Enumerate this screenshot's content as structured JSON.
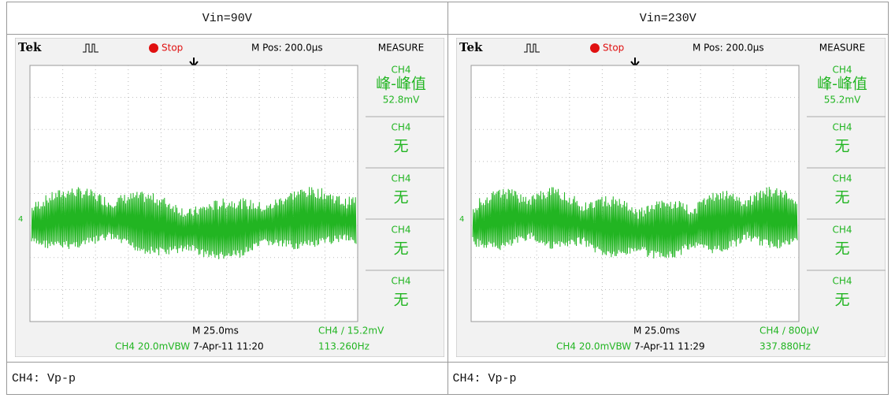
{
  "table": {
    "header": [
      "Vin=90V",
      "Vin=230V"
    ],
    "captions": [
      "CH4: Vp-p",
      "CH4: Vp-p"
    ]
  },
  "scopes": [
    {
      "brand": "Tek",
      "status": "Stop",
      "position": "M Pos: 200.0µs",
      "menu_title": "MEASURE",
      "measurements": [
        {
          "channel": "CH4",
          "type": "峰-峰值",
          "value": "52.8mV"
        },
        {
          "channel": "CH4",
          "type": "无"
        },
        {
          "channel": "CH4",
          "type": "无"
        },
        {
          "channel": "CH4",
          "type": "无"
        },
        {
          "channel": "CH4",
          "type": "无"
        }
      ],
      "marker": "4",
      "timebase": "M 25.0ms",
      "trigger": "CH4 ∕ 15.2mV",
      "channel_setting": "CH4  20.0mVBW",
      "date": "7-Apr-11 11:20",
      "frequency": "113.260Hz"
    },
    {
      "brand": "Tek",
      "status": "Stop",
      "position": "M Pos: 200.0µs",
      "menu_title": "MEASURE",
      "measurements": [
        {
          "channel": "CH4",
          "type": "峰-峰值",
          "value": "55.2mV"
        },
        {
          "channel": "CH4",
          "type": "无"
        },
        {
          "channel": "CH4",
          "type": "无"
        },
        {
          "channel": "CH4",
          "type": "无"
        },
        {
          "channel": "CH4",
          "type": "无"
        }
      ],
      "marker": "4",
      "timebase": "M 25.0ms",
      "trigger": "CH4 ∕ 800µV",
      "channel_setting": "CH4  20.0mVBW",
      "date": "7-Apr-11 11:29",
      "frequency": "337.880Hz"
    }
  ]
}
